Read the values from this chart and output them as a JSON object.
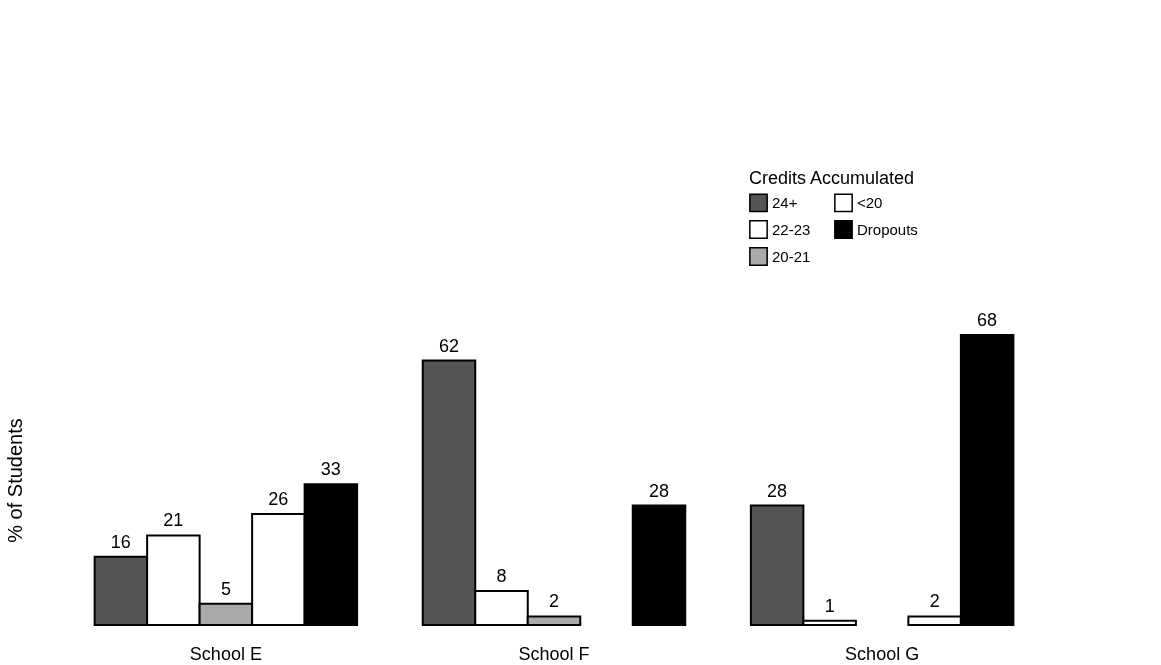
{
  "chart_data": {
    "type": "bar",
    "ylabel": "% of Students",
    "legend_title": "Credits Accumulated",
    "legend": "top right",
    "data_labels": true,
    "grid": false,
    "categories": [
      "School E",
      "School F",
      "School G"
    ],
    "series": [
      {
        "name": "24+",
        "color": "#555555",
        "values": [
          16,
          62,
          28
        ]
      },
      {
        "name": "22-23",
        "color": "#ffffff",
        "values": [
          21,
          8,
          1
        ]
      },
      {
        "name": "20-21",
        "color": "#aaaaaa",
        "values": [
          5,
          2,
          null
        ]
      },
      {
        "name": "<20",
        "color": "#ffffff",
        "values": [
          26,
          null,
          2
        ]
      },
      {
        "name": "Dropouts",
        "color": "#000000",
        "values": [
          33,
          28,
          68
        ]
      }
    ]
  }
}
